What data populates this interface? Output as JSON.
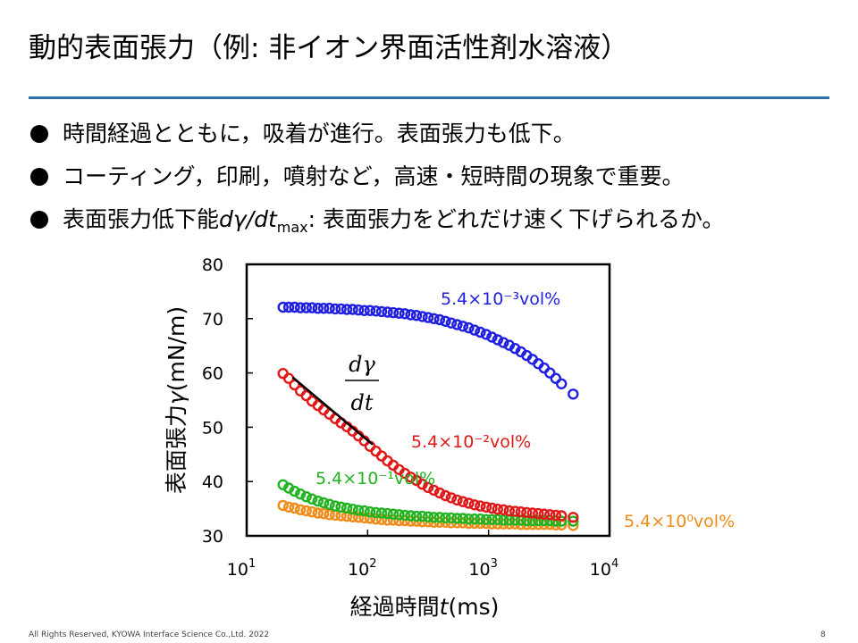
{
  "slide": {
    "title": "動的表面張力（例: 非イオン界面活性剤水溶液）",
    "bullets": [
      {
        "text": "時間経過とともに，吸着が進行。表面張力も低下。"
      },
      {
        "text": "コーティング，印刷，噴射など，高速・短時間の現象で重要。"
      },
      {
        "pre": "表面張力低下能",
        "it": "dγ/dt",
        "sub": "max",
        "post": ": 表面張力をどれだけ速く下げられるか。"
      }
    ],
    "footer": "All Rights Reserved, KYOWA Interface Science Co.,Ltd. 2022",
    "page_number": "8"
  },
  "chart_data": {
    "type": "scatter",
    "x_scale": "log",
    "xlim": [
      10,
      10000
    ],
    "ylim": [
      30,
      80
    ],
    "xlabel": {
      "main": "経過時間",
      "var": "t",
      "unit": "(ms)"
    },
    "ylabel": {
      "main": "表面張力",
      "var": "γ",
      "unit": "(mN/m)"
    },
    "x_ticks": [
      {
        "base": "10",
        "exp": "1"
      },
      {
        "base": "10",
        "exp": "2"
      },
      {
        "base": "10",
        "exp": "3"
      },
      {
        "base": "10",
        "exp": "4"
      }
    ],
    "y_ticks": [
      "30",
      "40",
      "50",
      "60",
      "70",
      "80"
    ],
    "grid": false,
    "series": [
      {
        "name": "5.4×10⁻³vol%",
        "color": "#1f1fdf",
        "x": [
          20,
          22.3,
          24.9,
          27.8,
          31.1,
          34.7,
          38.8,
          43.3,
          48.3,
          54,
          60.3,
          67.3,
          75.2,
          84,
          93.8,
          104.7,
          117,
          130.6,
          145.9,
          162.9,
          181.9,
          203.2,
          226.9,
          253.4,
          283,
          316,
          352.9,
          394.1,
          440.1,
          491.5,
          548.9,
          613,
          684.6,
          764.5,
          853.8,
          953.5,
          1064.8,
          1189.1,
          1328,
          1483,
          1656.2,
          1849.6,
          2065.6,
          2306.8,
          2576.1,
          2876.9,
          3212.9,
          3588.1,
          4007.1,
          5000
        ],
        "y": [
          72.1,
          72.1,
          72.1,
          72,
          72,
          72,
          71.9,
          71.9,
          71.9,
          71.8,
          71.8,
          71.7,
          71.7,
          71.6,
          71.5,
          71.5,
          71.4,
          71.3,
          71.2,
          71.1,
          71,
          70.9,
          70.7,
          70.6,
          70.4,
          70.2,
          70,
          69.8,
          69.5,
          69.2,
          68.9,
          68.6,
          68.3,
          67.9,
          67.5,
          67.1,
          66.6,
          66.1,
          65.6,
          65.1,
          64.5,
          63.9,
          63.2,
          62.5,
          61.7,
          60.9,
          60,
          59,
          58,
          56.1
        ]
      },
      {
        "name": "5.4×10⁻²vol%",
        "color": "#e01818",
        "x": [
          20,
          22.3,
          24.9,
          27.8,
          31.1,
          34.7,
          38.8,
          43.3,
          48.3,
          54,
          60.3,
          67.3,
          75.2,
          84,
          93.8,
          104.7,
          117,
          130.6,
          145.9,
          162.9,
          181.9,
          203.2,
          226.9,
          253.4,
          283,
          316,
          352.9,
          394.1,
          440.1,
          491.5,
          548.9,
          613,
          684.6,
          764.5,
          853.8,
          953.5,
          1064.8,
          1189.1,
          1328,
          1483,
          1656.2,
          1849.6,
          2065.6,
          2306.8,
          2576.1,
          2876.9,
          3212.9,
          3588.1,
          4007.1,
          5000
        ],
        "y": [
          59.9,
          59,
          57.8,
          56.7,
          55.8,
          54.8,
          54,
          53.2,
          52.4,
          51.6,
          50.8,
          50.1,
          49.3,
          48.4,
          47.5,
          46.5,
          45.6,
          44.7,
          43.8,
          43,
          42.2,
          41.5,
          40.8,
          40.2,
          39.5,
          38.9,
          38.4,
          37.9,
          37.4,
          37,
          36.6,
          36.3,
          36,
          35.7,
          35.5,
          35.3,
          35.1,
          34.9,
          34.8,
          34.6,
          34.5,
          34.4,
          34.3,
          34.2,
          34.1,
          34,
          33.9,
          33.8,
          33.7,
          33.4
        ]
      },
      {
        "name": "5.4×10⁻¹vol%",
        "color": "#22b322",
        "x": [
          20,
          22.3,
          24.9,
          27.8,
          31.1,
          34.7,
          38.8,
          43.3,
          48.3,
          54,
          60.3,
          67.3,
          75.2,
          84,
          93.8,
          104.7,
          117,
          130.6,
          145.9,
          162.9,
          181.9,
          203.2,
          226.9,
          253.4,
          283,
          316,
          352.9,
          394.1,
          440.1,
          491.5,
          548.9,
          613,
          684.6,
          764.5,
          853.8,
          953.5,
          1064.8,
          1189.1,
          1328,
          1483,
          1656.2,
          1849.6,
          2065.6,
          2306.8,
          2576.1,
          2876.9,
          3212.9,
          3588.1,
          4007.1,
          5000
        ],
        "y": [
          39.4,
          38.8,
          38.2,
          37.7,
          37.2,
          36.8,
          36.4,
          36.1,
          35.8,
          35.5,
          35.3,
          35.1,
          34.9,
          34.7,
          34.6,
          34.4,
          34.3,
          34.2,
          34.1,
          34,
          33.9,
          33.8,
          33.7,
          33.6,
          33.6,
          33.5,
          33.4,
          33.4,
          33.3,
          33.3,
          33.2,
          33.2,
          33.1,
          33.1,
          33.1,
          33,
          33,
          33,
          32.9,
          32.9,
          32.9,
          32.9,
          32.8,
          32.8,
          32.8,
          32.8,
          32.8,
          32.7,
          32.7,
          32.7
        ]
      },
      {
        "name": "5.4×10⁰vol%",
        "color": "#f08c1a",
        "x": [
          20,
          22.3,
          24.9,
          27.8,
          31.1,
          34.7,
          38.8,
          43.3,
          48.3,
          54,
          60.3,
          67.3,
          75.2,
          84,
          93.8,
          104.7,
          117,
          130.6,
          145.9,
          162.9,
          181.9,
          203.2,
          226.9,
          253.4,
          283,
          316,
          352.9,
          394.1,
          440.1,
          491.5,
          548.9,
          613,
          684.6,
          764.5,
          853.8,
          953.5,
          1064.8,
          1189.1,
          1328,
          1483,
          1656.2,
          1849.6,
          2065.6,
          2306.8,
          2576.1,
          2876.9,
          3212.9,
          3588.1,
          4007.1,
          5000
        ],
        "y": [
          35.6,
          35.3,
          35.1,
          34.8,
          34.6,
          34.4,
          34.2,
          34.1,
          33.9,
          33.8,
          33.7,
          33.6,
          33.5,
          33.4,
          33.3,
          33.2,
          33.1,
          33,
          32.9,
          32.9,
          32.8,
          32.8,
          32.7,
          32.7,
          32.6,
          32.6,
          32.5,
          32.5,
          32.5,
          32.4,
          32.4,
          32.4,
          32.3,
          32.3,
          32.3,
          32.3,
          32.2,
          32.2,
          32.2,
          32.2,
          32.2,
          32.1,
          32.1,
          32.1,
          32.1,
          32.1,
          32.1,
          32,
          32,
          31.9
        ]
      }
    ],
    "tangent": {
      "color": "#000000",
      "x": [
        24,
        110
      ],
      "y": [
        59.2,
        46.8
      ]
    },
    "annotation": {
      "numerator": "dγ",
      "denominator": "dt"
    }
  }
}
